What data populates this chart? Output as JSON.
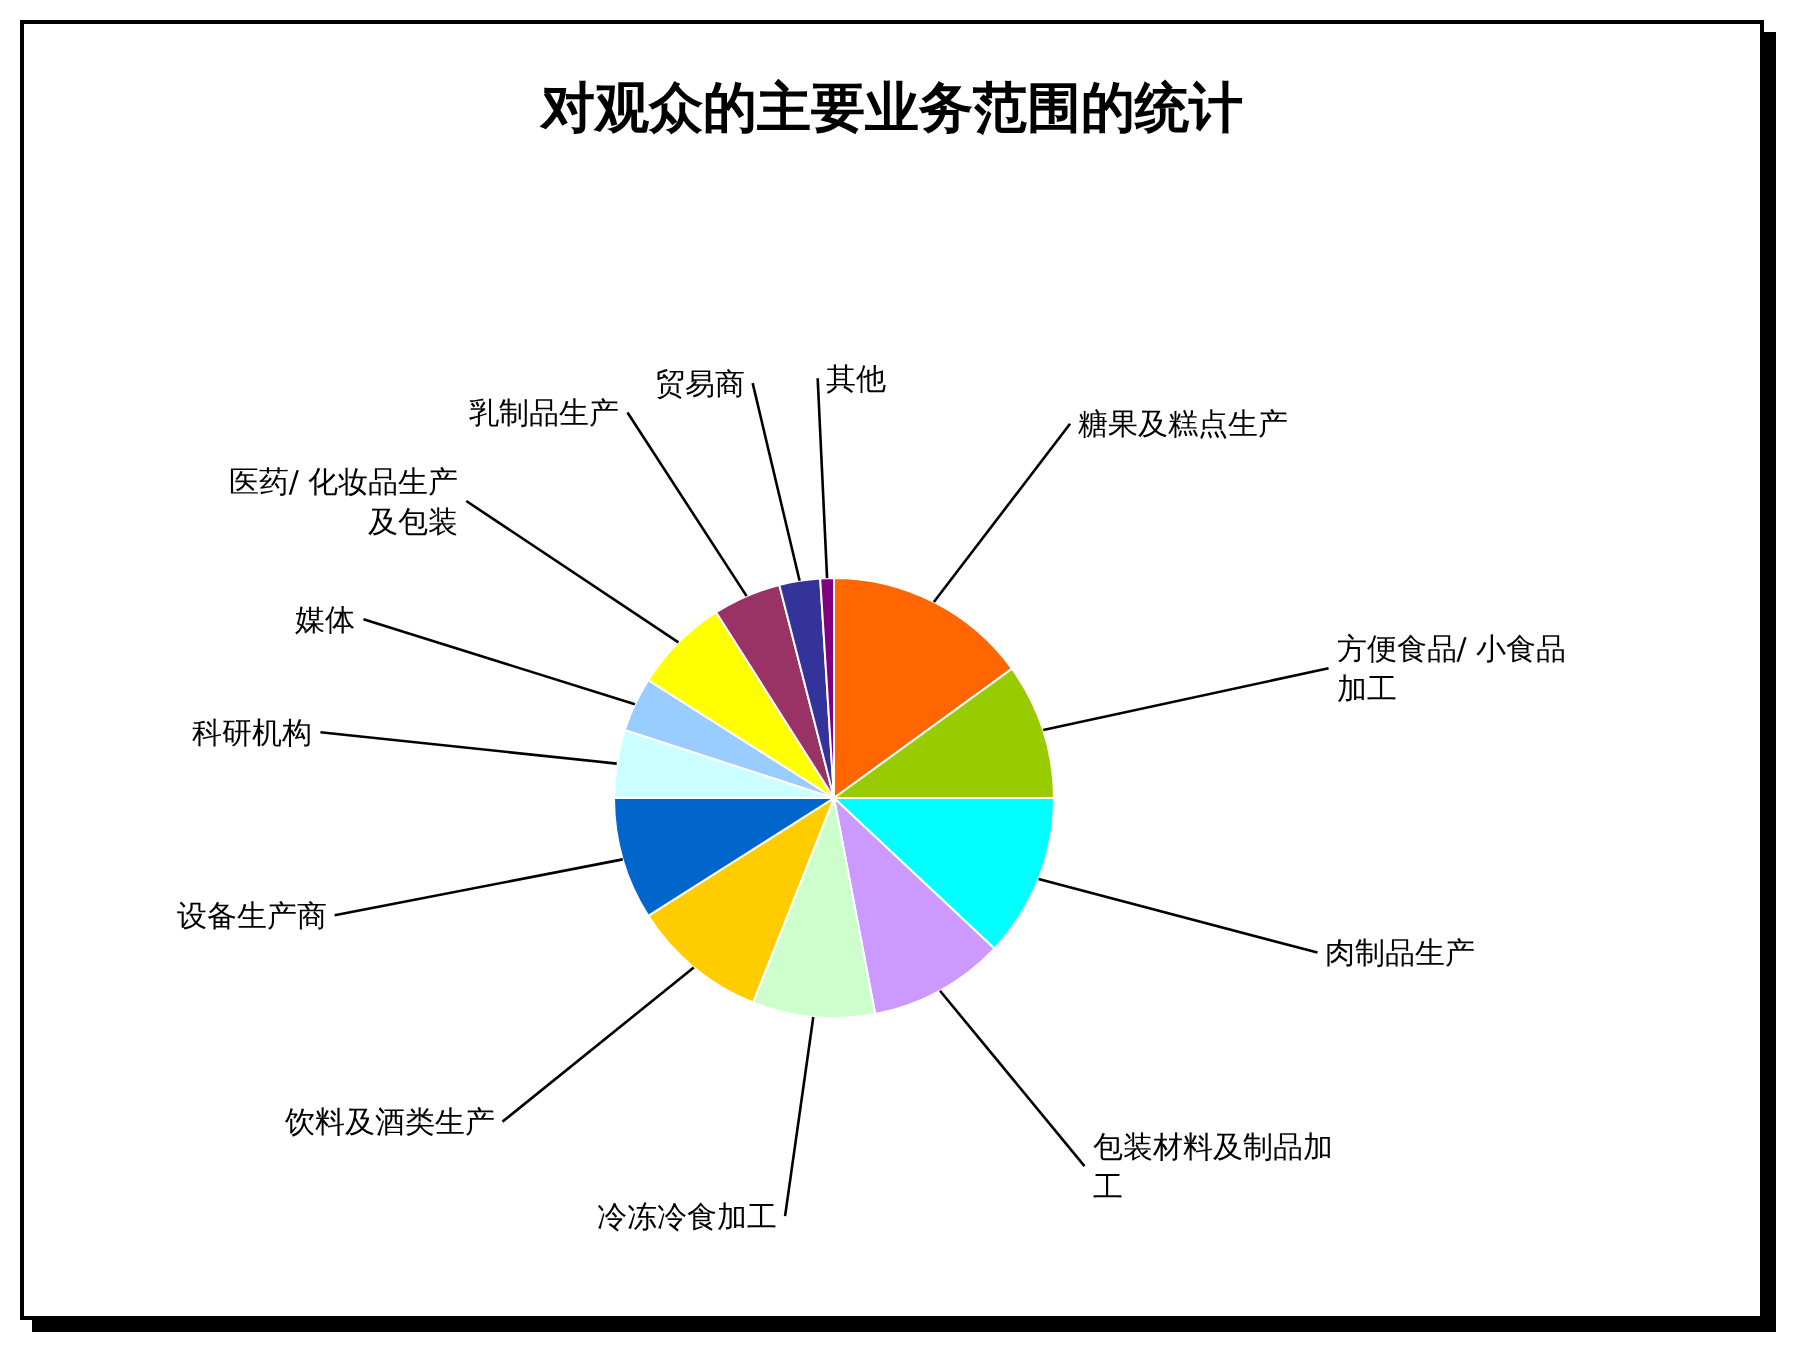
{
  "chart_data": {
    "type": "pie",
    "title": "对观众的主要业务范围的统计",
    "categories": [
      "糖果及糕点生产",
      "方便食品/ 小食品加工",
      "肉制品生产",
      "包装材料及制品加工",
      "冷冻冷食加工",
      "饮料及酒类生产",
      "设备生产商",
      "科研机构",
      "媒体",
      "医药/ 化妆品生产及包装",
      "乳制品生产",
      "贸易商",
      "其他"
    ],
    "values": [
      15,
      10,
      12,
      10,
      9,
      10,
      9,
      5,
      4,
      7,
      5,
      3,
      1
    ],
    "colors": [
      "#ff6600",
      "#99cc00",
      "#00ffff",
      "#cc99ff",
      "#ccffcc",
      "#ffcc00",
      "#0066cc",
      "#ccffff",
      "#99ccff",
      "#ffff00",
      "#993366",
      "#333399",
      "#800080"
    ]
  }
}
